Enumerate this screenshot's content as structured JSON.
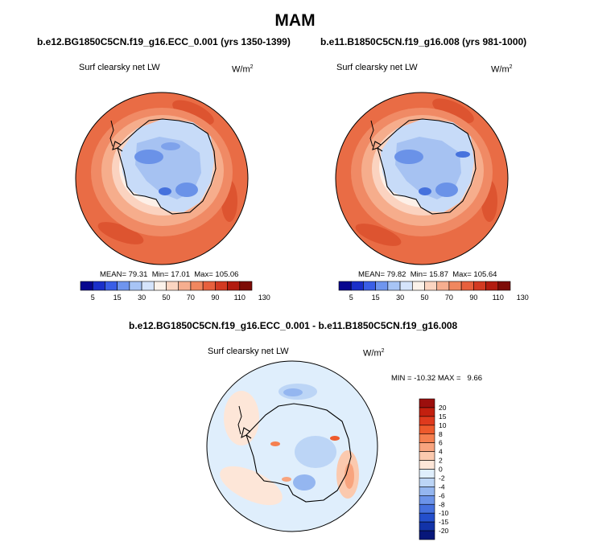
{
  "main_title": "MAM",
  "chart_data": [
    {
      "type": "heatmap",
      "title": "b.e12.BG1850C5CN.f19_g16.ECC_0.001 (yrs 1350-1399)",
      "variable": "Surf clearsky net LW",
      "units_base": "W/m",
      "units_exp": "2",
      "stats": {
        "mean": "79.31",
        "min": "17.01",
        "max": "105.06"
      },
      "stats_text": {
        "mean_label": "MEAN=",
        "min_label": "Min=",
        "max_label": "Max="
      },
      "colorbar": {
        "orientation": "horizontal",
        "tick_labels": [
          "5",
          "15",
          "30",
          "50",
          "70",
          "90",
          "110",
          "130"
        ],
        "colors": [
          "#08068f",
          "#1a2fc9",
          "#3a5ee6",
          "#6f95ee",
          "#a7c4f5",
          "#d5e4fb",
          "#fbf2ea",
          "#fbd5c1",
          "#f6ae8f",
          "#f0875f",
          "#e7603d",
          "#d23a22",
          "#b21c10",
          "#7d0b06"
        ]
      }
    },
    {
      "type": "heatmap",
      "title": "b.e11.B1850C5CN.f19_g16.008 (yrs 981-1000)",
      "variable": "Surf clearsky net LW",
      "units_base": "W/m",
      "units_exp": "2",
      "stats": {
        "mean": "79.82",
        "min": "15.87",
        "max": "105.64"
      },
      "stats_text": {
        "mean_label": "MEAN=",
        "min_label": "Min=",
        "max_label": "Max="
      },
      "colorbar": {
        "orientation": "horizontal",
        "tick_labels": [
          "5",
          "15",
          "30",
          "50",
          "70",
          "90",
          "110",
          "130"
        ],
        "colors": [
          "#08068f",
          "#1a2fc9",
          "#3a5ee6",
          "#6f95ee",
          "#a7c4f5",
          "#d5e4fb",
          "#fbf2ea",
          "#fbd5c1",
          "#f6ae8f",
          "#f0875f",
          "#e7603d",
          "#d23a22",
          "#b21c10",
          "#7d0b06"
        ]
      }
    },
    {
      "type": "heatmap",
      "title": "b.e12.BG1850C5CN.f19_g16.ECC_0.001 - b.e11.B1850C5CN.f19_g16.008",
      "variable": "Surf clearsky net LW",
      "units_base": "W/m",
      "units_exp": "2",
      "stats": {
        "min": "-10.32",
        "max": "9.66"
      },
      "stats_text": {
        "min_label": "MIN =",
        "max_label": "MAX ="
      },
      "colorbar": {
        "orientation": "vertical",
        "tick_labels": [
          "20",
          "15",
          "10",
          "8",
          "6",
          "4",
          "2",
          "0",
          "-2",
          "-4",
          "-6",
          "-8",
          "-10",
          "-15",
          "-20"
        ],
        "colors": [
          "#9c0f0d",
          "#c3200f",
          "#df3a1d",
          "#ee5a2c",
          "#f57f4f",
          "#f8a47e",
          "#fbc9ae",
          "#fde6d8",
          "#dfeefc",
          "#bcd5f6",
          "#94b6f0",
          "#6b93e9",
          "#4570de",
          "#244fcc",
          "#1233a8",
          "#07177a"
        ]
      }
    }
  ]
}
